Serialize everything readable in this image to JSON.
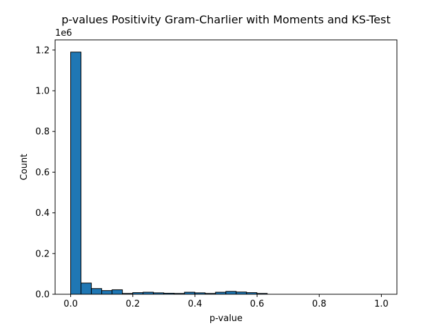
{
  "chart_data": {
    "type": "bar",
    "title": "p-values Positivity Gram-Charlier with Moments and KS-Test",
    "xlabel": "p-value",
    "ylabel": "Count",
    "y_offset_label": "1e6",
    "xlim": [
      -0.05,
      1.05
    ],
    "ylim": [
      0,
      1.25
    ],
    "x_ticks": [
      0.0,
      0.2,
      0.4,
      0.6,
      0.8,
      1.0
    ],
    "x_tick_labels": [
      "0.0",
      "0.2",
      "0.4",
      "0.6",
      "0.8",
      "1.0"
    ],
    "y_ticks": [
      0.0,
      0.2,
      0.4,
      0.6,
      0.8,
      1.0,
      1.2
    ],
    "y_tick_labels": [
      "0.0",
      "0.2",
      "0.4",
      "0.6",
      "0.8",
      "1.0",
      "1.2"
    ],
    "grid": false,
    "legend": "none",
    "bar_color": "#1f77b4",
    "edge_color": "#000000",
    "bin_start": 0.0,
    "bin_width": 0.0333,
    "values": [
      1.19,
      0.055,
      0.028,
      0.018,
      0.022,
      0.004,
      0.008,
      0.01,
      0.007,
      0.005,
      0.004,
      0.01,
      0.007,
      0.004,
      0.01,
      0.014,
      0.011,
      0.008,
      0.004,
      0.0,
      0.0,
      0.0,
      0.0,
      0.0,
      0.0,
      0.0,
      0.0,
      0.0,
      0.0,
      0.0
    ]
  }
}
